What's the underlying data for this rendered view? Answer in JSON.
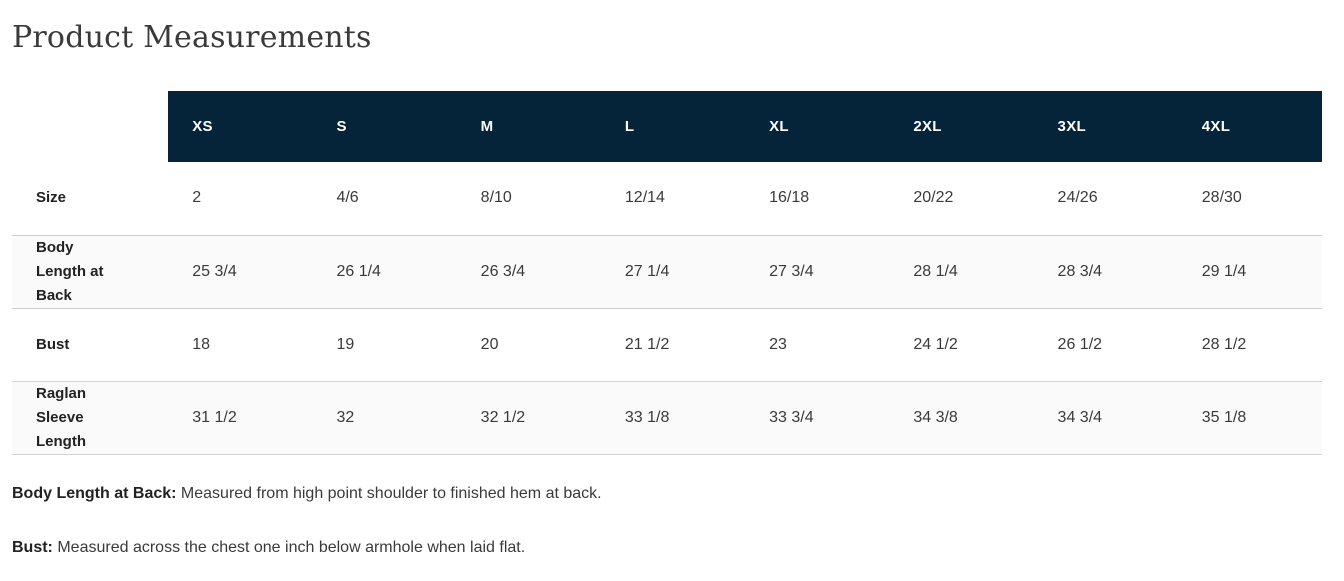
{
  "page": {
    "title": "Product Measurements"
  },
  "table": {
    "columns": [
      "XS",
      "S",
      "M",
      "L",
      "XL",
      "2XL",
      "3XL",
      "4XL"
    ],
    "rows": [
      {
        "label": "Size",
        "values": [
          "2",
          "4/6",
          "8/10",
          "12/14",
          "16/18",
          "20/22",
          "24/26",
          "28/30"
        ]
      },
      {
        "label": "Body Length at Back",
        "values": [
          "25 3/4",
          "26 1/4",
          "26 3/4",
          "27 1/4",
          "27 3/4",
          "28 1/4",
          "28 3/4",
          "29 1/4"
        ]
      },
      {
        "label": "Bust",
        "values": [
          "18",
          "19",
          "20",
          "21 1/2",
          "23",
          "24 1/2",
          "26 1/2",
          "28 1/2"
        ]
      },
      {
        "label": "Raglan Sleeve Length",
        "values": [
          "31 1/2",
          "32",
          "32 1/2",
          "33 1/8",
          "33 3/4",
          "34 3/8",
          "34 3/4",
          "35 1/8"
        ]
      }
    ]
  },
  "notes": [
    {
      "term": "Body Length at Back:",
      "definition": "Measured from high point shoulder to finished hem at back."
    },
    {
      "term": "Bust:",
      "definition": "Measured across the chest one inch below armhole when laid flat."
    }
  ],
  "colors": {
    "header_bg": "#05243a",
    "header_text": "#ffffff",
    "row_alt_bg": "#fafafa",
    "border": "#d2d2d2",
    "text": "#3a3a3a"
  }
}
